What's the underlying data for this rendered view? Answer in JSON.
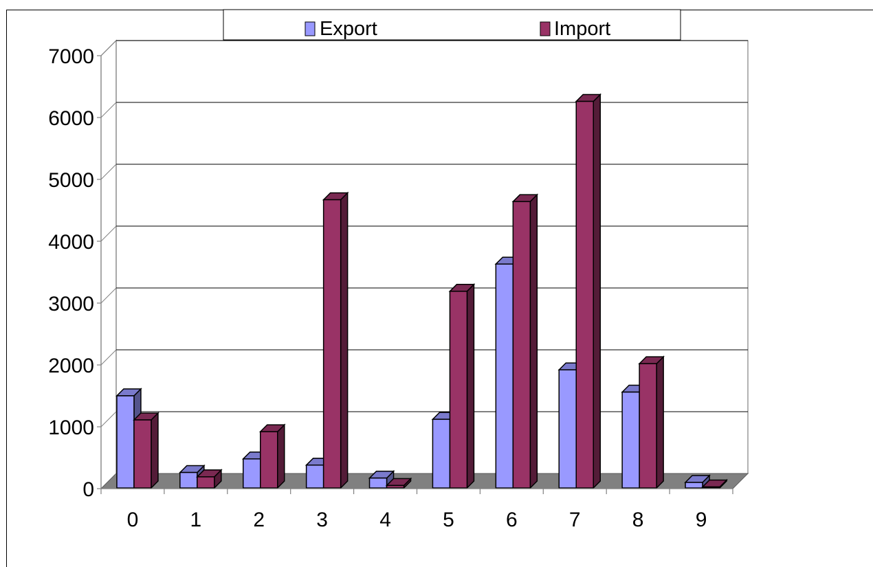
{
  "chart_data": {
    "type": "bar",
    "title": "",
    "xlabel": "",
    "ylabel": "",
    "categories": [
      "0",
      "1",
      "2",
      "3",
      "4",
      "5",
      "6",
      "7",
      "8",
      "9"
    ],
    "series": [
      {
        "name": "Export",
        "color": "#9999ff",
        "values": [
          1490,
          250,
          470,
          370,
          160,
          1110,
          3620,
          1910,
          1550,
          90
        ]
      },
      {
        "name": "Import",
        "color": "#993366",
        "values": [
          1100,
          180,
          910,
          4660,
          40,
          3180,
          4630,
          6250,
          2010,
          15
        ]
      }
    ],
    "ylim": [
      0,
      7000
    ],
    "yticks": [
      "0",
      "1000",
      "2000",
      "3000",
      "4000",
      "5000",
      "6000",
      "7000"
    ],
    "grid": true,
    "legend_position": "top",
    "style": "3d-clustered-column",
    "floor_color": "#808080"
  }
}
